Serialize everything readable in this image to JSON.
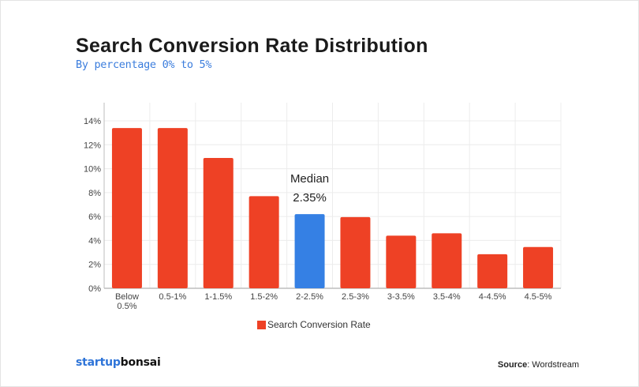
{
  "chart_data": {
    "type": "bar",
    "title": "Search Conversion Rate Distribution",
    "subtitle": "By percentage 0% to 5%",
    "categories": [
      "Below 0.5%",
      "0.5-1%",
      "1-1.5%",
      "1.5-2%",
      "2-2.5%",
      "2.5-3%",
      "3-3.5%",
      "3.5-4%",
      "4-4.5%",
      "4.5-5%"
    ],
    "series": [
      {
        "name": "Search Conversion Rate",
        "values": [
          13.4,
          13.4,
          10.9,
          7.7,
          6.2,
          5.95,
          4.4,
          4.6,
          2.85,
          3.45
        ]
      }
    ],
    "ylim": [
      0,
      14
    ],
    "yticks": [
      "0%",
      "2%",
      "4%",
      "6%",
      "8%",
      "10%",
      "12%",
      "14%"
    ],
    "grid": true,
    "legend_position": "bottom",
    "highlight_index": 4,
    "annotation": {
      "line1": "Median",
      "line2": "2.35%"
    },
    "colors": {
      "bar": "#ee4125",
      "highlight": "#3580e4",
      "grid": "#ececec",
      "axis": "#bdbdbd"
    }
  },
  "branding": {
    "logo_part1": "startup",
    "logo_part2": "bonsai"
  },
  "source": {
    "label": "Source",
    "value": ": Wordstream"
  }
}
